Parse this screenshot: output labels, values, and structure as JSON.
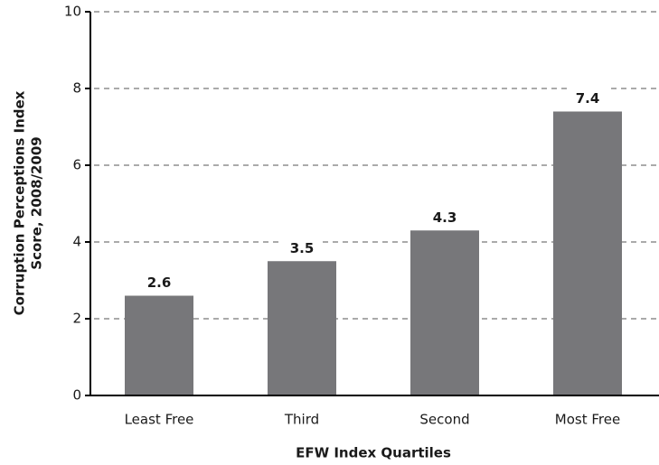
{
  "chart_data": {
    "type": "bar",
    "categories": [
      "Least Free",
      "Third",
      "Second",
      "Most Free"
    ],
    "values": [
      2.6,
      3.5,
      4.3,
      7.4
    ],
    "color": "#77777a",
    "ylim": [
      0,
      10
    ],
    "yticks": [
      0,
      2,
      4,
      6,
      8,
      10
    ],
    "grid": true,
    "xlabel": "EFW Index Quartiles",
    "ylabel": [
      "Corruption Perceptions Index",
      "Score, 2008/2009"
    ]
  }
}
